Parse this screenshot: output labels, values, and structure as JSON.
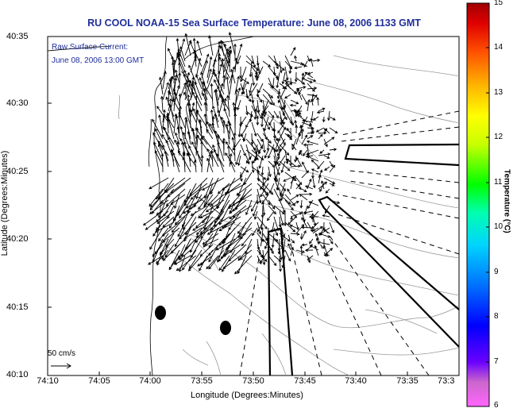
{
  "title": "RU COOL  NOAA-15  Sea Surface Temperature:  June 08, 2006 1133 GMT",
  "annotation": {
    "line1": "Raw Surface Current:",
    "line2": "June 08, 2006 13:00 GMT"
  },
  "axes": {
    "x_title": "Longitude (Degrees:Minutes)",
    "y_title": "Latitude (Degrees:Minutes)",
    "x_ticks": [
      "74:10",
      "74:05",
      "74:00",
      "73:55",
      "73:50",
      "73:45",
      "73:40",
      "73:35",
      "73:3"
    ],
    "y_ticks": [
      "40:35",
      "40:30",
      "40:25",
      "40:20",
      "40:15",
      "40:10"
    ]
  },
  "scale": {
    "label": "50 cm/s"
  },
  "colorbar": {
    "title": "Temperature (°C)",
    "ticks": [
      "15",
      "14",
      "13",
      "12",
      "11",
      "10",
      "9",
      "8",
      "7",
      "6"
    ],
    "min": 6,
    "max": 15
  },
  "colors": {
    "title_blue": "#1f2f9a",
    "land": "#ffffff",
    "contour": "#9a9a9a"
  }
}
